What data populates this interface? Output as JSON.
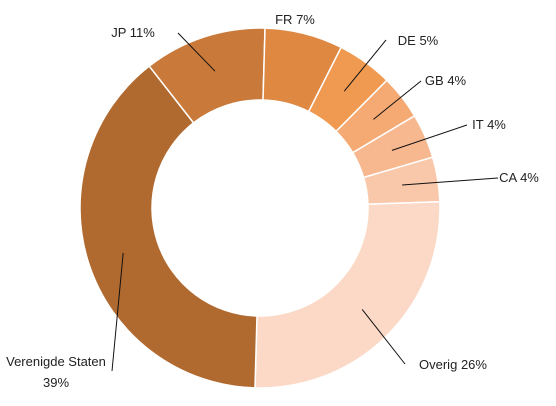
{
  "chart_data": {
    "type": "donut",
    "categories": [
      "JP",
      "FR",
      "DE",
      "GB",
      "IT",
      "CA",
      "Overig",
      "Verenigde Staten"
    ],
    "values": [
      11,
      7,
      5,
      4,
      4,
      4,
      26,
      39
    ],
    "value_labels": [
      "11%",
      "7%",
      "5%",
      "4%",
      "4%",
      "4%",
      "26%",
      "39%"
    ],
    "colors": [
      "#c97a3a",
      "#de8842",
      "#ef9a50",
      "#f5aa73",
      "#f7b890",
      "#f9c8aa",
      "#fbd9c6",
      "#b0692f"
    ]
  }
}
